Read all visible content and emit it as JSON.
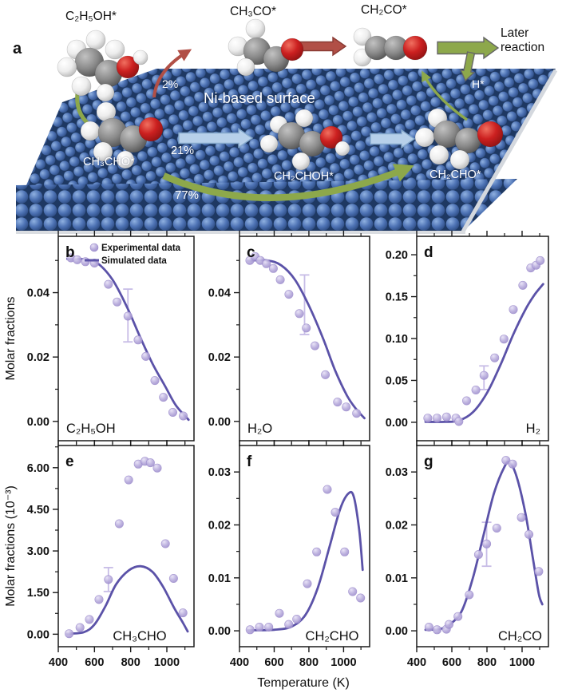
{
  "figure": {
    "panel_a": {
      "label": "a",
      "surface_text": "Ni-based surface",
      "later_reaction": "Later reaction",
      "molecule_labels": {
        "ethanol": "C₂H₅OH*",
        "ch3co": "CH₃CO*",
        "ch2co": "CH₂CO*",
        "ch3cho": "CH₃CHO*",
        "ch2choh": "CH₂CHOH*",
        "ch2cho": "CH₂CHO*",
        "h": "H*"
      },
      "percentages": {
        "to_ch3co": "2%",
        "to_ch2choh": "21%",
        "to_ch2cho": "77%"
      }
    },
    "axes": {
      "x_label": "Temperature (K)",
      "y_label_row1": "Molar fractions",
      "y_label_row2": "Molar fractions (10⁻³)"
    },
    "legend": {
      "experimental": "Experimental data",
      "simulated": "Simulated data"
    },
    "colors": {
      "line": "#5b52a8",
      "marker_fill": "#b9addd",
      "marker_hilite": "#e7e1f6",
      "marker_edge": "#9c8ccc",
      "error_bar": "#c7bce6",
      "axis": "#1a1a1a",
      "ni_blue": "#4d72b4",
      "ni_blue_light": "#8fb0e0",
      "ni_blue_dark": "#2c4a80",
      "ni_gap": "#1e3862",
      "arrow_green": "#8da84b",
      "arrow_red": "#b14f46",
      "arrow_blue": "#b7d0ea",
      "atom_white": "#ededed",
      "atom_gray": "#8a8a8a",
      "atom_red": "#cc2020"
    }
  },
  "chart_data": [
    {
      "panel": "b",
      "type": "scatter+line",
      "species": "C₂H₅OH",
      "x_range": [
        400,
        1150
      ],
      "x_major_ticks": [
        400,
        600,
        800,
        1000
      ],
      "x_minor_ticks": [
        500,
        700,
        900,
        1100
      ],
      "y_range": [
        -0.006,
        0.0575
      ],
      "y_major_ticks": [
        0.0,
        0.02,
        0.04
      ],
      "y_minor_ticks": [
        0.01,
        0.03,
        0.05
      ],
      "show_legend": true,
      "experimental": [
        [
          470,
          0.0508
        ],
        [
          505,
          0.0502
        ],
        [
          550,
          0.0496
        ],
        [
          600,
          0.0492
        ],
        [
          677,
          0.0426
        ],
        [
          725,
          0.0371
        ],
        [
          785,
          0.0327
        ],
        [
          841,
          0.0253
        ],
        [
          884,
          0.0202
        ],
        [
          934,
          0.0127
        ],
        [
          981,
          0.0075
        ],
        [
          1033,
          0.0028
        ],
        [
          1091,
          0.0017
        ]
      ],
      "error_bar": {
        "x": 785,
        "low": 0.0247,
        "high": 0.0411
      },
      "simulated": [
        [
          450,
          0.0505
        ],
        [
          550,
          0.0503
        ],
        [
          620,
          0.049
        ],
        [
          700,
          0.044
        ],
        [
          780,
          0.0355
        ],
        [
          850,
          0.0265
        ],
        [
          920,
          0.018
        ],
        [
          990,
          0.011
        ],
        [
          1050,
          0.005
        ],
        [
          1120,
          0.0005
        ]
      ]
    },
    {
      "panel": "c",
      "type": "scatter+line",
      "species": "H₂O",
      "x_range": [
        400,
        1150
      ],
      "x_major_ticks": [
        400,
        600,
        800,
        1000
      ],
      "x_minor_ticks": [
        500,
        700,
        900,
        1100
      ],
      "y_range": [
        -0.006,
        0.0575
      ],
      "y_major_ticks": [
        0.0,
        0.02,
        0.04
      ],
      "y_minor_ticks": [
        0.01,
        0.03,
        0.05
      ],
      "show_legend": false,
      "experimental": [
        [
          460,
          0.05
        ],
        [
          490,
          0.0512
        ],
        [
          520,
          0.05
        ],
        [
          555,
          0.049
        ],
        [
          595,
          0.0475
        ],
        [
          635,
          0.044
        ],
        [
          685,
          0.0395
        ],
        [
          745,
          0.0335
        ],
        [
          785,
          0.029
        ],
        [
          835,
          0.0235
        ],
        [
          895,
          0.0145
        ],
        [
          965,
          0.006
        ],
        [
          1015,
          0.0045
        ],
        [
          1075,
          0.0025
        ]
      ],
      "error_bar": {
        "x": 775,
        "low": 0.027,
        "high": 0.0455
      },
      "simulated": [
        [
          450,
          0.05
        ],
        [
          560,
          0.05
        ],
        [
          640,
          0.0485
        ],
        [
          720,
          0.044
        ],
        [
          800,
          0.036
        ],
        [
          880,
          0.026
        ],
        [
          950,
          0.016
        ],
        [
          1020,
          0.008
        ],
        [
          1070,
          0.004
        ],
        [
          1120,
          0.001
        ]
      ]
    },
    {
      "panel": "d",
      "type": "scatter+line",
      "species": "H₂",
      "x_range": [
        400,
        1150
      ],
      "x_major_ticks": [
        400,
        600,
        800,
        1000
      ],
      "x_minor_ticks": [
        500,
        700,
        900,
        1100
      ],
      "y_range": [
        -0.022,
        0.222
      ],
      "y_major_ticks": [
        0.0,
        0.05,
        0.1,
        0.15,
        0.2
      ],
      "y_minor_ticks": [
        0.025,
        0.075,
        0.125,
        0.175
      ],
      "show_legend": false,
      "experimental": [
        [
          463,
          0.005
        ],
        [
          516,
          0.005
        ],
        [
          570,
          0.0064
        ],
        [
          623,
          0.005
        ],
        [
          640,
          0.001
        ],
        [
          684,
          0.0257
        ],
        [
          737,
          0.0385
        ],
        [
          783,
          0.056
        ],
        [
          844,
          0.0769
        ],
        [
          897,
          0.0993
        ],
        [
          950,
          0.1346
        ],
        [
          1004,
          0.1635
        ],
        [
          1049,
          0.1843
        ],
        [
          1080,
          0.1875
        ],
        [
          1103,
          0.193
        ]
      ],
      "error_bar": {
        "x": 783,
        "low": 0.0391,
        "high": 0.0673
      },
      "simulated": [
        [
          450,
          0.0005
        ],
        [
          560,
          0.0005
        ],
        [
          640,
          0.002
        ],
        [
          720,
          0.012
        ],
        [
          800,
          0.035
        ],
        [
          880,
          0.07
        ],
        [
          950,
          0.105
        ],
        [
          1020,
          0.135
        ],
        [
          1070,
          0.152
        ],
        [
          1120,
          0.165
        ]
      ]
    },
    {
      "panel": "e",
      "type": "scatter+line",
      "species": "CH₃CHO",
      "x_range": [
        400,
        1150
      ],
      "x_major_ticks": [
        400,
        600,
        800,
        1000
      ],
      "x_minor_ticks": [
        500,
        700,
        900,
        1100
      ],
      "y_range": [
        -0.45,
        6.8
      ],
      "y_major_ticks": [
        0.0,
        1.5,
        3.0,
        4.5,
        6.0
      ],
      "y_minor_ticks": [
        0.75,
        2.25,
        3.75,
        5.25,
        6.75
      ],
      "show_legend": false,
      "experimental": [
        [
          460,
          0.02
        ],
        [
          520,
          0.24
        ],
        [
          572,
          0.53
        ],
        [
          625,
          1.25
        ],
        [
          677,
          1.97
        ],
        [
          737,
          3.98
        ],
        [
          789,
          5.56
        ],
        [
          842,
          6.13
        ],
        [
          879,
          6.23
        ],
        [
          909,
          6.18
        ],
        [
          947,
          5.99
        ],
        [
          992,
          3.26
        ],
        [
          1037,
          2.01
        ],
        [
          1089,
          0.77
        ]
      ],
      "error_bar": {
        "x": 677,
        "low": 1.54,
        "high": 2.4
      },
      "simulated": [
        [
          450,
          0.02
        ],
        [
          540,
          0.07
        ],
        [
          600,
          0.35
        ],
        [
          660,
          1.0
        ],
        [
          720,
          1.8
        ],
        [
          790,
          2.3
        ],
        [
          855,
          2.45
        ],
        [
          920,
          2.25
        ],
        [
          980,
          1.7
        ],
        [
          1040,
          0.95
        ],
        [
          1090,
          0.4
        ],
        [
          1115,
          0.1
        ]
      ]
    },
    {
      "panel": "f",
      "type": "scatter+line",
      "species": "CH₂CHO",
      "x_range": [
        400,
        1150
      ],
      "x_major_ticks": [
        400,
        600,
        800,
        1000
      ],
      "x_minor_ticks": [
        500,
        700,
        900,
        1100
      ],
      "y_range": [
        -0.003,
        0.035
      ],
      "y_major_ticks": [
        0.0,
        0.01,
        0.02,
        0.03
      ],
      "y_minor_ticks": [
        0.005,
        0.015,
        0.025
      ],
      "show_legend": false,
      "experimental": [
        [
          461,
          0.0002
        ],
        [
          515,
          0.0007
        ],
        [
          569,
          0.0007
        ],
        [
          630,
          0.0033
        ],
        [
          684,
          0.0012
        ],
        [
          730,
          0.0022
        ],
        [
          791,
          0.0089
        ],
        [
          845,
          0.0149
        ],
        [
          906,
          0.0267
        ],
        [
          952,
          0.0224
        ],
        [
          1006,
          0.0149
        ],
        [
          1052,
          0.0074
        ],
        [
          1098,
          0.0062
        ]
      ],
      "error_bar": null,
      "simulated": [
        [
          450,
          0.0001
        ],
        [
          600,
          0.0002
        ],
        [
          700,
          0.0008
        ],
        [
          780,
          0.003
        ],
        [
          850,
          0.008
        ],
        [
          920,
          0.016
        ],
        [
          980,
          0.023
        ],
        [
          1030,
          0.026
        ],
        [
          1060,
          0.0252
        ],
        [
          1090,
          0.019
        ],
        [
          1110,
          0.0115
        ]
      ]
    },
    {
      "panel": "g",
      "type": "scatter+line",
      "species": "CH₂CO",
      "x_range": [
        400,
        1150
      ],
      "x_major_ticks": [
        400,
        600,
        800,
        1000
      ],
      "x_minor_ticks": [
        500,
        700,
        900,
        1100
      ],
      "y_range": [
        -0.003,
        0.035
      ],
      "y_major_ticks": [
        0.0,
        0.01,
        0.02,
        0.03
      ],
      "y_minor_ticks": [
        0.005,
        0.015,
        0.025
      ],
      "show_legend": false,
      "experimental": [
        [
          470,
          0.0007
        ],
        [
          516,
          0.0002
        ],
        [
          569,
          0.0003
        ],
        [
          584,
          0.0012
        ],
        [
          635,
          0.0027
        ],
        [
          699,
          0.0068
        ],
        [
          752,
          0.0144
        ],
        [
          798,
          0.0164
        ],
        [
          856,
          0.0194
        ],
        [
          908,
          0.0322
        ],
        [
          946,
          0.0315
        ],
        [
          996,
          0.0214
        ],
        [
          1039,
          0.0182
        ],
        [
          1095,
          0.0112
        ]
      ],
      "error_bar": {
        "x": 798,
        "low": 0.0122,
        "high": 0.0205
      },
      "simulated": [
        [
          450,
          0.0002
        ],
        [
          540,
          0.0004
        ],
        [
          600,
          0.0015
        ],
        [
          660,
          0.004
        ],
        [
          720,
          0.01
        ],
        [
          780,
          0.018
        ],
        [
          840,
          0.026
        ],
        [
          900,
          0.031
        ],
        [
          930,
          0.0318
        ],
        [
          970,
          0.029
        ],
        [
          1020,
          0.022
        ],
        [
          1060,
          0.014
        ],
        [
          1095,
          0.007
        ],
        [
          1115,
          0.005
        ]
      ]
    }
  ]
}
